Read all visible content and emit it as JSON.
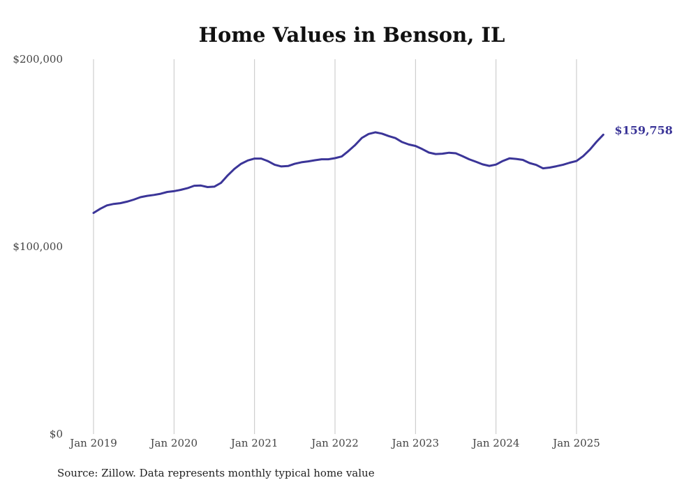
{
  "chart_data": {
    "type": "line",
    "title": "Home Values in Benson, IL",
    "xlabel": "",
    "ylabel": "",
    "source_note": "Source: Zillow. Data represents monthly typical home value",
    "ylim": [
      0,
      200000
    ],
    "y_ticks": [
      {
        "value": 0,
        "label": "$0"
      },
      {
        "value": 100000,
        "label": "$100,000"
      },
      {
        "value": 200000,
        "label": "$200,000"
      }
    ],
    "x_ticks": [
      {
        "value": "2019-01",
        "label": "Jan 2019"
      },
      {
        "value": "2020-01",
        "label": "Jan 2020"
      },
      {
        "value": "2021-01",
        "label": "Jan 2021"
      },
      {
        "value": "2022-01",
        "label": "Jan 2022"
      },
      {
        "value": "2023-01",
        "label": "Jan 2023"
      },
      {
        "value": "2024-01",
        "label": "Jan 2024"
      },
      {
        "value": "2025-01",
        "label": "Jan 2025"
      }
    ],
    "grid": {
      "vertical": true,
      "horizontal": false
    },
    "end_label": "$159,758",
    "colors": {
      "series": "#3b3598"
    },
    "series": [
      {
        "x": [
          "2019-01",
          "2019-02",
          "2019-03",
          "2019-04",
          "2019-05",
          "2019-06",
          "2019-07",
          "2019-08",
          "2019-09",
          "2019-10",
          "2019-11",
          "2019-12",
          "2020-01",
          "2020-02",
          "2020-03",
          "2020-04",
          "2020-05",
          "2020-06",
          "2020-07",
          "2020-08",
          "2020-09",
          "2020-10",
          "2020-11",
          "2020-12",
          "2021-01",
          "2021-02",
          "2021-03",
          "2021-04",
          "2021-05",
          "2021-06",
          "2021-07",
          "2021-08",
          "2021-09",
          "2021-10",
          "2021-11",
          "2021-12",
          "2022-01",
          "2022-02",
          "2022-03",
          "2022-04",
          "2022-05",
          "2022-06",
          "2022-07",
          "2022-08",
          "2022-09",
          "2022-10",
          "2022-11",
          "2022-12",
          "2023-01",
          "2023-02",
          "2023-03",
          "2023-04",
          "2023-05",
          "2023-06",
          "2023-07",
          "2023-08",
          "2023-09",
          "2023-10",
          "2023-11",
          "2023-12",
          "2024-01",
          "2024-02",
          "2024-03",
          "2024-04",
          "2024-05",
          "2024-06",
          "2024-07",
          "2024-08",
          "2024-09",
          "2024-10",
          "2024-11",
          "2024-12",
          "2025-01",
          "2025-02",
          "2025-03",
          "2025-04",
          "2025-05"
        ],
        "values": [
          118000,
          120200,
          122000,
          122800,
          123200,
          124000,
          125100,
          126400,
          127100,
          127600,
          128200,
          129200,
          129600,
          130300,
          131200,
          132500,
          132600,
          131800,
          132000,
          134000,
          138000,
          141500,
          144200,
          146000,
          147000,
          147000,
          145600,
          143700,
          142800,
          143000,
          144200,
          145000,
          145500,
          146100,
          146600,
          146600,
          147200,
          148100,
          151000,
          154200,
          158000,
          160100,
          161000,
          160300,
          159000,
          157900,
          155800,
          154500,
          153700,
          152100,
          150200,
          149400,
          149600,
          150100,
          149800,
          148300,
          146600,
          145300,
          143900,
          143100,
          143800,
          145700,
          147100,
          146800,
          146300,
          144600,
          143600,
          141800,
          142200,
          142900,
          143700,
          144800,
          145700,
          148300,
          151800,
          156000,
          159758
        ]
      }
    ]
  }
}
